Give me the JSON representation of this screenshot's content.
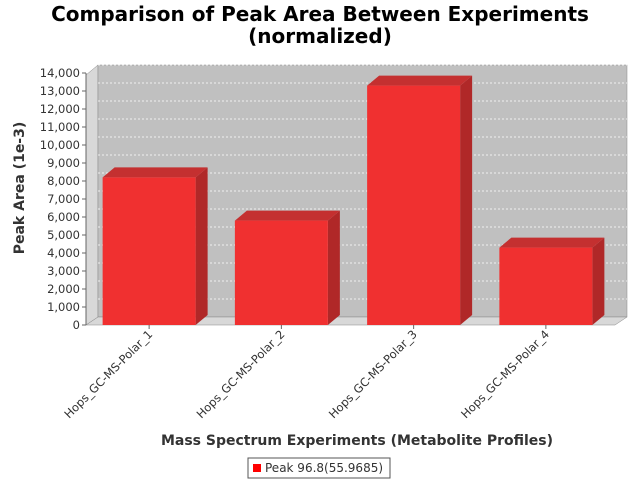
{
  "chart_data": {
    "type": "bar",
    "title_line1": "Comparison of Peak Area Between Experiments",
    "title_line2": "(normalized)",
    "xlabel": "Mass Spectrum Experiments (Metabolite Profiles)",
    "ylabel": "Peak Area (1e-3)",
    "categories": [
      "Hops_GC-MS-Polar_1",
      "Hops_GC-MS-Polar_2",
      "Hops_GC-MS-Polar_3",
      "Hops_GC-MS-Polar_4"
    ],
    "series": [
      {
        "name": "Peak 96.8(55.9685)",
        "values": [
          8200,
          5800,
          13300,
          4300
        ]
      }
    ],
    "ylim": [
      0,
      14000
    ],
    "yticks": [
      "0",
      "1,000",
      "2,000",
      "3,000",
      "4,000",
      "5,000",
      "6,000",
      "7,000",
      "8,000",
      "9,000",
      "10,000",
      "11,000",
      "12,000",
      "13,000",
      "14,000"
    ],
    "grid": true,
    "legend": "bottom",
    "colors": {
      "bar": "#f03030",
      "bar_top": "#c43030",
      "bar_side": "#b02828",
      "plot_bg": "#c0c0c0",
      "wall": "#d8d8d8"
    }
  }
}
